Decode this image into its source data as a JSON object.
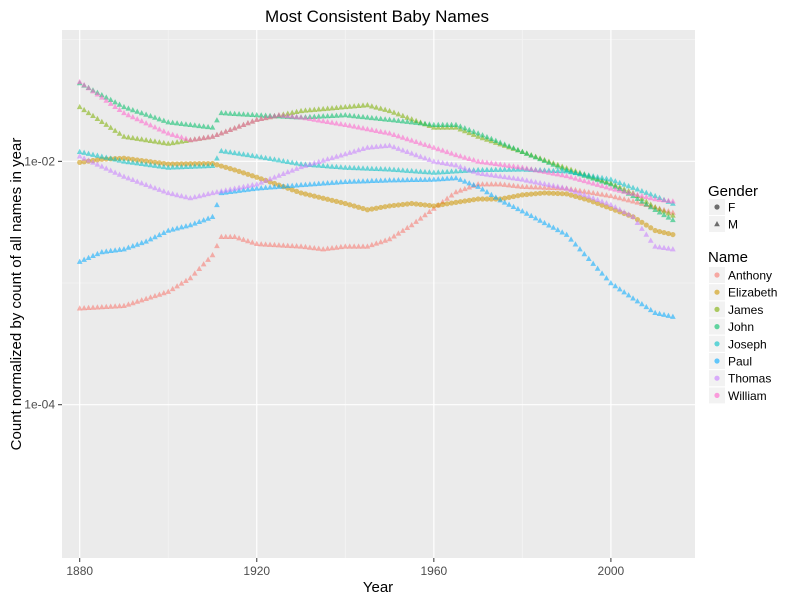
{
  "chart_data": {
    "type": "scatter",
    "title": "Most Consistent Baby Names",
    "xlabel": "Year",
    "ylabel": "Count normalized by count of all names in year",
    "y_scale": "log10",
    "xlim": [
      1876,
      2019
    ],
    "ylim": [
      5.5e-06,
      0.12
    ],
    "x_ticks": [
      1880,
      1920,
      1960,
      2000
    ],
    "x_tick_labels": [
      "1880",
      "1920",
      "1960",
      "2000"
    ],
    "y_ticks": [
      0.0001,
      0.01
    ],
    "y_tick_labels": [
      "1e-04",
      "1e-02"
    ],
    "grid": true,
    "legend_position": "right",
    "legends": {
      "gender": {
        "title": "Gender",
        "entries": [
          {
            "label": "F",
            "shape": "circle"
          },
          {
            "label": "M",
            "shape": "triangle"
          }
        ]
      },
      "name": {
        "title": "Name",
        "entries": [
          {
            "label": "Anthony",
            "color": "#F8766D"
          },
          {
            "label": "Elizabeth",
            "color": "#CD9600"
          },
          {
            "label": "James",
            "color": "#7CAE00"
          },
          {
            "label": "John",
            "color": "#00BE67"
          },
          {
            "label": "Joseph",
            "color": "#00BFC4"
          },
          {
            "label": "Paul",
            "color": "#00A9FF"
          },
          {
            "label": "Thomas",
            "color": "#C77CFF"
          },
          {
            "label": "William",
            "color": "#FF61CC"
          }
        ]
      }
    },
    "series": [
      {
        "name": "Anthony",
        "gender": "M",
        "color": "#F8766D",
        "x": [
          1880,
          1890,
          1900,
          1905,
          1910,
          1912,
          1915,
          1920,
          1930,
          1935,
          1940,
          1945,
          1950,
          1955,
          1960,
          1965,
          1970,
          1975,
          1980,
          1990,
          2000,
          2005,
          2010,
          2014
        ],
        "y": [
          0.00062,
          0.00065,
          0.00085,
          0.0011,
          0.0017,
          0.0024,
          0.0024,
          0.0021,
          0.002,
          0.0019,
          0.002,
          0.002,
          0.0023,
          0.003,
          0.0041,
          0.0056,
          0.0065,
          0.0065,
          0.0062,
          0.006,
          0.0052,
          0.0047,
          0.0042,
          0.0038
        ]
      },
      {
        "name": "Elizabeth",
        "gender": "F",
        "color": "#CD9600",
        "x": [
          1880,
          1885,
          1890,
          1900,
          1910,
          1915,
          1920,
          1930,
          1940,
          1945,
          1950,
          1955,
          1960,
          1965,
          1970,
          1975,
          1980,
          1985,
          1990,
          1995,
          2000,
          2005,
          2010,
          2014
        ],
        "y": [
          0.0098,
          0.0104,
          0.0106,
          0.0095,
          0.0096,
          0.0085,
          0.0074,
          0.0055,
          0.0045,
          0.004,
          0.0043,
          0.0045,
          0.0043,
          0.0046,
          0.0049,
          0.0049,
          0.0053,
          0.0055,
          0.0054,
          0.0048,
          0.0041,
          0.0035,
          0.0027,
          0.0025
        ]
      },
      {
        "name": "James",
        "gender": "M",
        "color": "#7CAE00",
        "x": [
          1880,
          1890,
          1900,
          1910,
          1920,
          1930,
          1940,
          1945,
          1950,
          1960,
          1965,
          1970,
          1980,
          1990,
          2000,
          2005,
          2010,
          2014
        ],
        "y": [
          0.028,
          0.016,
          0.014,
          0.016,
          0.022,
          0.026,
          0.028,
          0.029,
          0.026,
          0.019,
          0.019,
          0.016,
          0.012,
          0.0088,
          0.0066,
          0.0055,
          0.0042,
          0.0036
        ]
      },
      {
        "name": "John",
        "gender": "M",
        "color": "#00BE67",
        "x": [
          1880,
          1890,
          1900,
          1910,
          1912,
          1920,
          1930,
          1940,
          1950,
          1960,
          1965,
          1970,
          1980,
          1990,
          2000,
          2005,
          2010,
          2014
        ],
        "y": [
          0.044,
          0.028,
          0.021,
          0.019,
          0.025,
          0.024,
          0.023,
          0.024,
          0.022,
          0.02,
          0.02,
          0.017,
          0.012,
          0.0085,
          0.0065,
          0.0052,
          0.004,
          0.0033
        ]
      },
      {
        "name": "Joseph",
        "gender": "M",
        "color": "#00BFC4",
        "x": [
          1880,
          1890,
          1900,
          1910,
          1912,
          1920,
          1930,
          1940,
          1950,
          1960,
          1965,
          1970,
          1980,
          1990,
          2000,
          2010,
          2014
        ],
        "y": [
          0.012,
          0.01,
          0.0089,
          0.0092,
          0.0122,
          0.011,
          0.0095,
          0.0089,
          0.0086,
          0.0081,
          0.0083,
          0.0085,
          0.0086,
          0.0083,
          0.0071,
          0.0052,
          0.0045
        ]
      },
      {
        "name": "Paul",
        "gender": "M",
        "color": "#00A9FF",
        "x": [
          1880,
          1885,
          1890,
          1895,
          1900,
          1905,
          1910,
          1912,
          1920,
          1930,
          1940,
          1950,
          1960,
          1965,
          1970,
          1975,
          1980,
          1990,
          2000,
          2005,
          2010,
          2014
        ],
        "y": [
          0.0015,
          0.0018,
          0.0019,
          0.0022,
          0.0027,
          0.003,
          0.0035,
          0.0055,
          0.006,
          0.0064,
          0.0068,
          0.007,
          0.0071,
          0.0073,
          0.0062,
          0.0048,
          0.0039,
          0.0025,
          0.001,
          0.00075,
          0.00057,
          0.00053
        ]
      },
      {
        "name": "Thomas",
        "gender": "M",
        "color": "#C77CFF",
        "x": [
          1880,
          1890,
          1900,
          1905,
          1910,
          1920,
          1930,
          1940,
          1945,
          1950,
          1960,
          1965,
          1970,
          1980,
          1990,
          2000,
          2005,
          2010,
          2014
        ],
        "y": [
          0.011,
          0.0075,
          0.0055,
          0.005,
          0.0055,
          0.0065,
          0.009,
          0.0115,
          0.013,
          0.0135,
          0.01,
          0.0093,
          0.008,
          0.0071,
          0.006,
          0.0044,
          0.0035,
          0.002,
          0.0019
        ]
      },
      {
        "name": "William",
        "gender": "M",
        "color": "#FF61CC",
        "x": [
          1880,
          1890,
          1900,
          1905,
          1910,
          1920,
          1925,
          1930,
          1940,
          1950,
          1960,
          1965,
          1970,
          1980,
          1990,
          2000,
          2010,
          2014
        ],
        "y": [
          0.045,
          0.025,
          0.017,
          0.015,
          0.016,
          0.022,
          0.024,
          0.023,
          0.02,
          0.017,
          0.013,
          0.0113,
          0.01,
          0.0089,
          0.0076,
          0.006,
          0.0049,
          0.0047
        ]
      }
    ]
  }
}
